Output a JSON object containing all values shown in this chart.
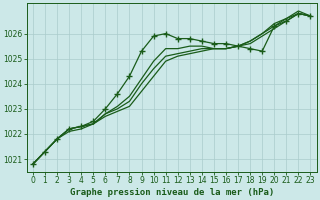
{
  "title": "Graphe pression niveau de la mer (hPa)",
  "background_color": "#cce8e8",
  "line_color": "#1a5c1a",
  "grid_color": "#aacccc",
  "xlim": [
    -0.5,
    23.5
  ],
  "ylim": [
    1020.5,
    1027.2
  ],
  "yticks": [
    1021,
    1022,
    1023,
    1024,
    1025,
    1026
  ],
  "xticks": [
    0,
    1,
    2,
    3,
    4,
    5,
    6,
    7,
    8,
    9,
    10,
    11,
    12,
    13,
    14,
    15,
    16,
    17,
    18,
    19,
    20,
    21,
    22,
    23
  ],
  "series": [
    [
      1020.8,
      1021.3,
      1021.8,
      1022.2,
      1022.3,
      1022.5,
      1023.0,
      1023.6,
      1024.3,
      1025.3,
      1025.9,
      1026.0,
      1025.8,
      1025.8,
      1025.7,
      1025.6,
      1025.6,
      1025.5,
      1025.4,
      1025.3,
      1026.3,
      1026.5,
      1026.8,
      1026.7
    ],
    [
      1020.8,
      1021.3,
      1021.8,
      1022.2,
      1022.3,
      1022.4,
      1022.8,
      1023.1,
      1023.5,
      1024.2,
      1024.9,
      1025.4,
      1025.4,
      1025.5,
      1025.5,
      1025.4,
      1025.4,
      1025.5,
      1025.6,
      1025.9,
      1026.2,
      1026.5,
      1026.8,
      1026.7
    ],
    [
      1020.8,
      1021.3,
      1021.8,
      1022.2,
      1022.3,
      1022.4,
      1022.8,
      1023.0,
      1023.3,
      1024.0,
      1024.6,
      1025.1,
      1025.2,
      1025.3,
      1025.4,
      1025.4,
      1025.4,
      1025.5,
      1025.7,
      1026.0,
      1026.3,
      1026.6,
      1026.8,
      1026.7
    ],
    [
      1020.8,
      1021.3,
      1021.8,
      1022.1,
      1022.2,
      1022.4,
      1022.7,
      1022.9,
      1023.1,
      1023.7,
      1024.3,
      1024.9,
      1025.1,
      1025.2,
      1025.3,
      1025.4,
      1025.4,
      1025.5,
      1025.7,
      1026.0,
      1026.4,
      1026.6,
      1026.9,
      1026.7
    ]
  ],
  "marker_series": 0,
  "marker": "+",
  "markersize": 4,
  "markeredgewidth": 1.0,
  "linewidth": 0.9,
  "fontsize_ticks": 5.5,
  "fontsize_label": 6.5
}
